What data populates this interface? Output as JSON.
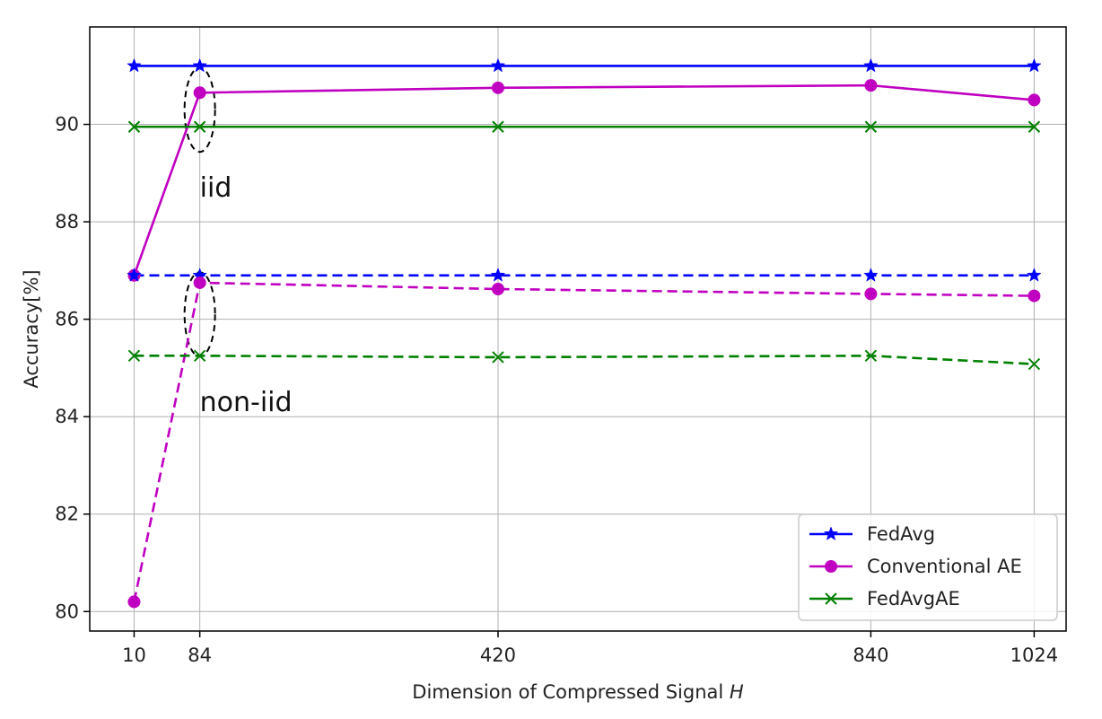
{
  "chart_data": {
    "type": "line",
    "xlabel": "Dimension of Compressed Signal H",
    "xlabel_main": "Dimension of Compressed Signal ",
    "xlabel_var": "H",
    "ylabel": "Accuracy[%]",
    "x": [
      10,
      84,
      420,
      840,
      1024
    ],
    "xticks": [
      "10",
      "84",
      "420",
      "840",
      "1024"
    ],
    "yticks": [
      80,
      82,
      84,
      86,
      88,
      90
    ],
    "ytick_labels": [
      "80",
      "82",
      "84",
      "86",
      "88",
      "90"
    ],
    "xlim": [
      -40,
      1060
    ],
    "ylim": [
      79.6,
      92.0
    ],
    "grid": true,
    "legend_position": "lower-right",
    "legend": [
      {
        "label": "FedAvg",
        "color": "#0000ff",
        "marker": "star"
      },
      {
        "label": "Conventional AE",
        "color": "#c000c0",
        "marker": "circle"
      },
      {
        "label": "FedAvgAE",
        "color": "#008000",
        "marker": "x"
      }
    ],
    "series": [
      {
        "name": "FedAvg",
        "setting": "iid",
        "color": "#0000ff",
        "marker": "star",
        "dashed": false,
        "values": [
          91.2,
          91.2,
          91.2,
          91.2,
          91.2
        ]
      },
      {
        "name": "Conventional AE",
        "setting": "iid",
        "color": "#c000c0",
        "marker": "circle",
        "dashed": false,
        "values": [
          86.9,
          90.65,
          90.75,
          90.8,
          90.5
        ]
      },
      {
        "name": "FedAvgAE",
        "setting": "iid",
        "color": "#008000",
        "marker": "x",
        "dashed": false,
        "values": [
          89.95,
          89.95,
          89.95,
          89.95,
          89.95
        ]
      },
      {
        "name": "FedAvg",
        "setting": "non-iid",
        "color": "#0000ff",
        "marker": "star",
        "dashed": true,
        "values": [
          86.9,
          86.9,
          86.9,
          86.9,
          86.9
        ]
      },
      {
        "name": "Conventional AE",
        "setting": "non-iid",
        "color": "#c000c0",
        "marker": "circle",
        "dashed": true,
        "values": [
          80.2,
          86.75,
          86.62,
          86.52,
          86.48
        ]
      },
      {
        "name": "FedAvgAE",
        "setting": "non-iid",
        "color": "#008000",
        "marker": "x",
        "dashed": true,
        "values": [
          85.25,
          85.25,
          85.22,
          85.25,
          85.08
        ]
      }
    ],
    "annotations": [
      {
        "text": "iid",
        "x": 84,
        "y": 88.7
      },
      {
        "text": "non-iid",
        "x": 84,
        "y": 84.3
      }
    ],
    "ellipses": [
      {
        "x": 84,
        "y_center": 90.3
      },
      {
        "x": 84,
        "y_center": 86.1
      }
    ]
  }
}
